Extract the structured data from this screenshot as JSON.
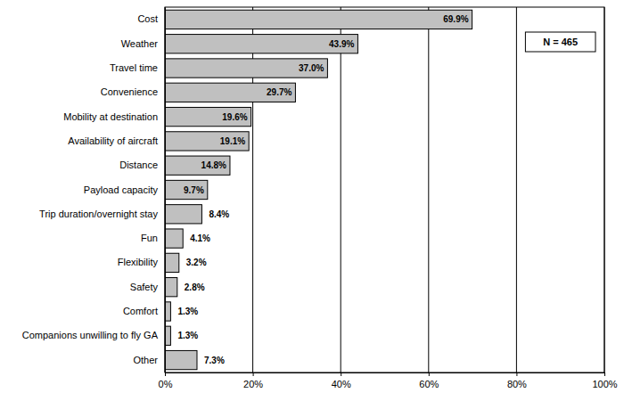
{
  "chart_data": {
    "type": "bar",
    "orientation": "horizontal",
    "categories": [
      "Cost",
      "Weather",
      "Travel time",
      "Convenience",
      "Mobility at destination",
      "Availability of aircraft",
      "Distance",
      "Payload capacity",
      "Trip duration/overnight stay",
      "Fun",
      "Flexibility",
      "Safety",
      "Comfort",
      "Companions unwilling to fly GA",
      "Other"
    ],
    "values": [
      69.9,
      43.9,
      37.0,
      29.7,
      19.6,
      19.1,
      14.8,
      9.7,
      8.4,
      4.1,
      3.2,
      2.8,
      1.3,
      1.3,
      7.3
    ],
    "value_labels": [
      "69.9%",
      "43.9%",
      "37.0%",
      "29.7%",
      "19.6%",
      "19.1%",
      "14.8%",
      "9.7%",
      "8.4%",
      "4.1%",
      "3.2%",
      "2.8%",
      "1.3%",
      "1.3%",
      "7.3%"
    ],
    "color": "#c0c0c0",
    "xlim": [
      0,
      100
    ],
    "xticks": [
      {
        "value": 0,
        "label": "0%"
      },
      {
        "value": 20,
        "label": "20%"
      },
      {
        "value": 40,
        "label": "40%"
      },
      {
        "value": 60,
        "label": "60%"
      },
      {
        "value": 80,
        "label": "80%"
      },
      {
        "value": 100,
        "label": "100%"
      }
    ],
    "grid": true,
    "data_labels": true,
    "annotations": [
      "N = 465"
    ]
  }
}
